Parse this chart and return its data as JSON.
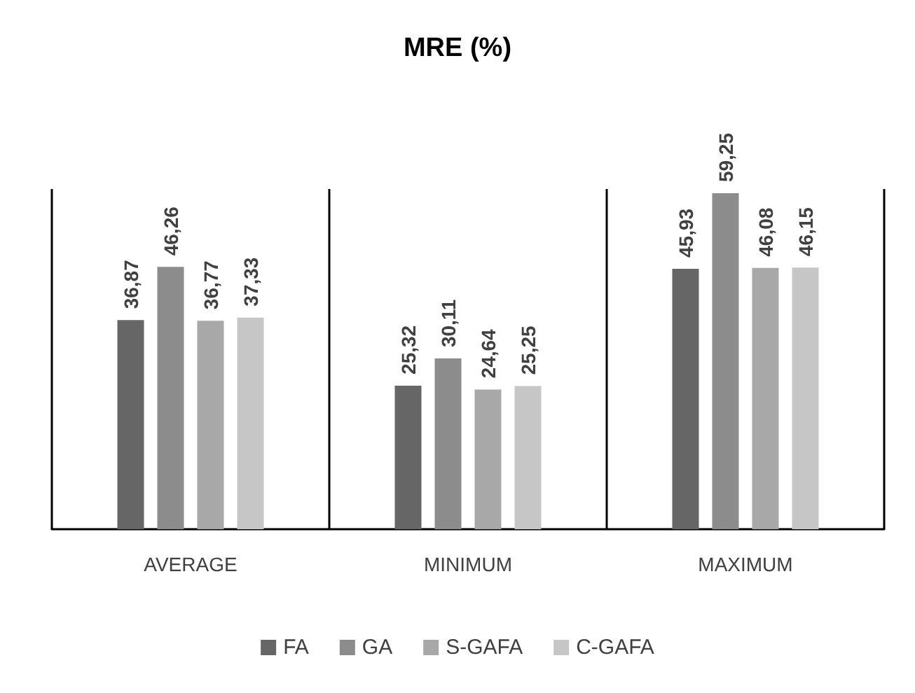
{
  "chart_data": {
    "type": "bar",
    "title": "MRE (%)",
    "categories": [
      "AVERAGE",
      "MINIMUM",
      "MAXIMUM"
    ],
    "series": [
      {
        "name": "FA",
        "color": "#666666",
        "values": [
          36.87,
          25.32,
          45.93
        ],
        "value_labels": [
          "36,87",
          "25,32",
          "45,93"
        ]
      },
      {
        "name": "GA",
        "color": "#8c8c8c",
        "values": [
          46.26,
          30.11,
          59.25
        ],
        "value_labels": [
          "46,26",
          "30,11",
          "59,25"
        ]
      },
      {
        "name": "S-GAFA",
        "color": "#a8a8a8",
        "values": [
          36.77,
          24.64,
          46.08
        ],
        "value_labels": [
          "36,77",
          "24,64",
          "46,08"
        ]
      },
      {
        "name": "C-GAFA",
        "color": "#c6c6c6",
        "values": [
          37.33,
          25.25,
          46.15
        ],
        "value_labels": [
          "37,33",
          "25,25",
          "46,15"
        ]
      }
    ],
    "grid": "x",
    "legend": "bottom"
  }
}
